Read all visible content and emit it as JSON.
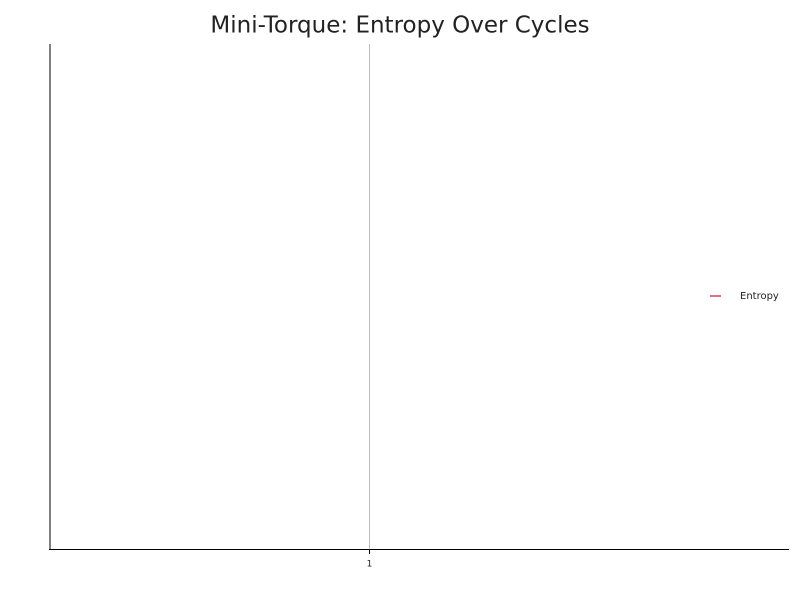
{
  "chart_data": {
    "type": "line",
    "title": "Mini-Torque: Entropy Over Cycles",
    "x": [
      1
    ],
    "series": [
      {
        "name": "Entropy",
        "color": "#c8102e",
        "values": [
          null
        ]
      }
    ],
    "xlim": [
      0,
      2
    ],
    "xticks": [
      1
    ],
    "grid": true,
    "legend": "right"
  }
}
